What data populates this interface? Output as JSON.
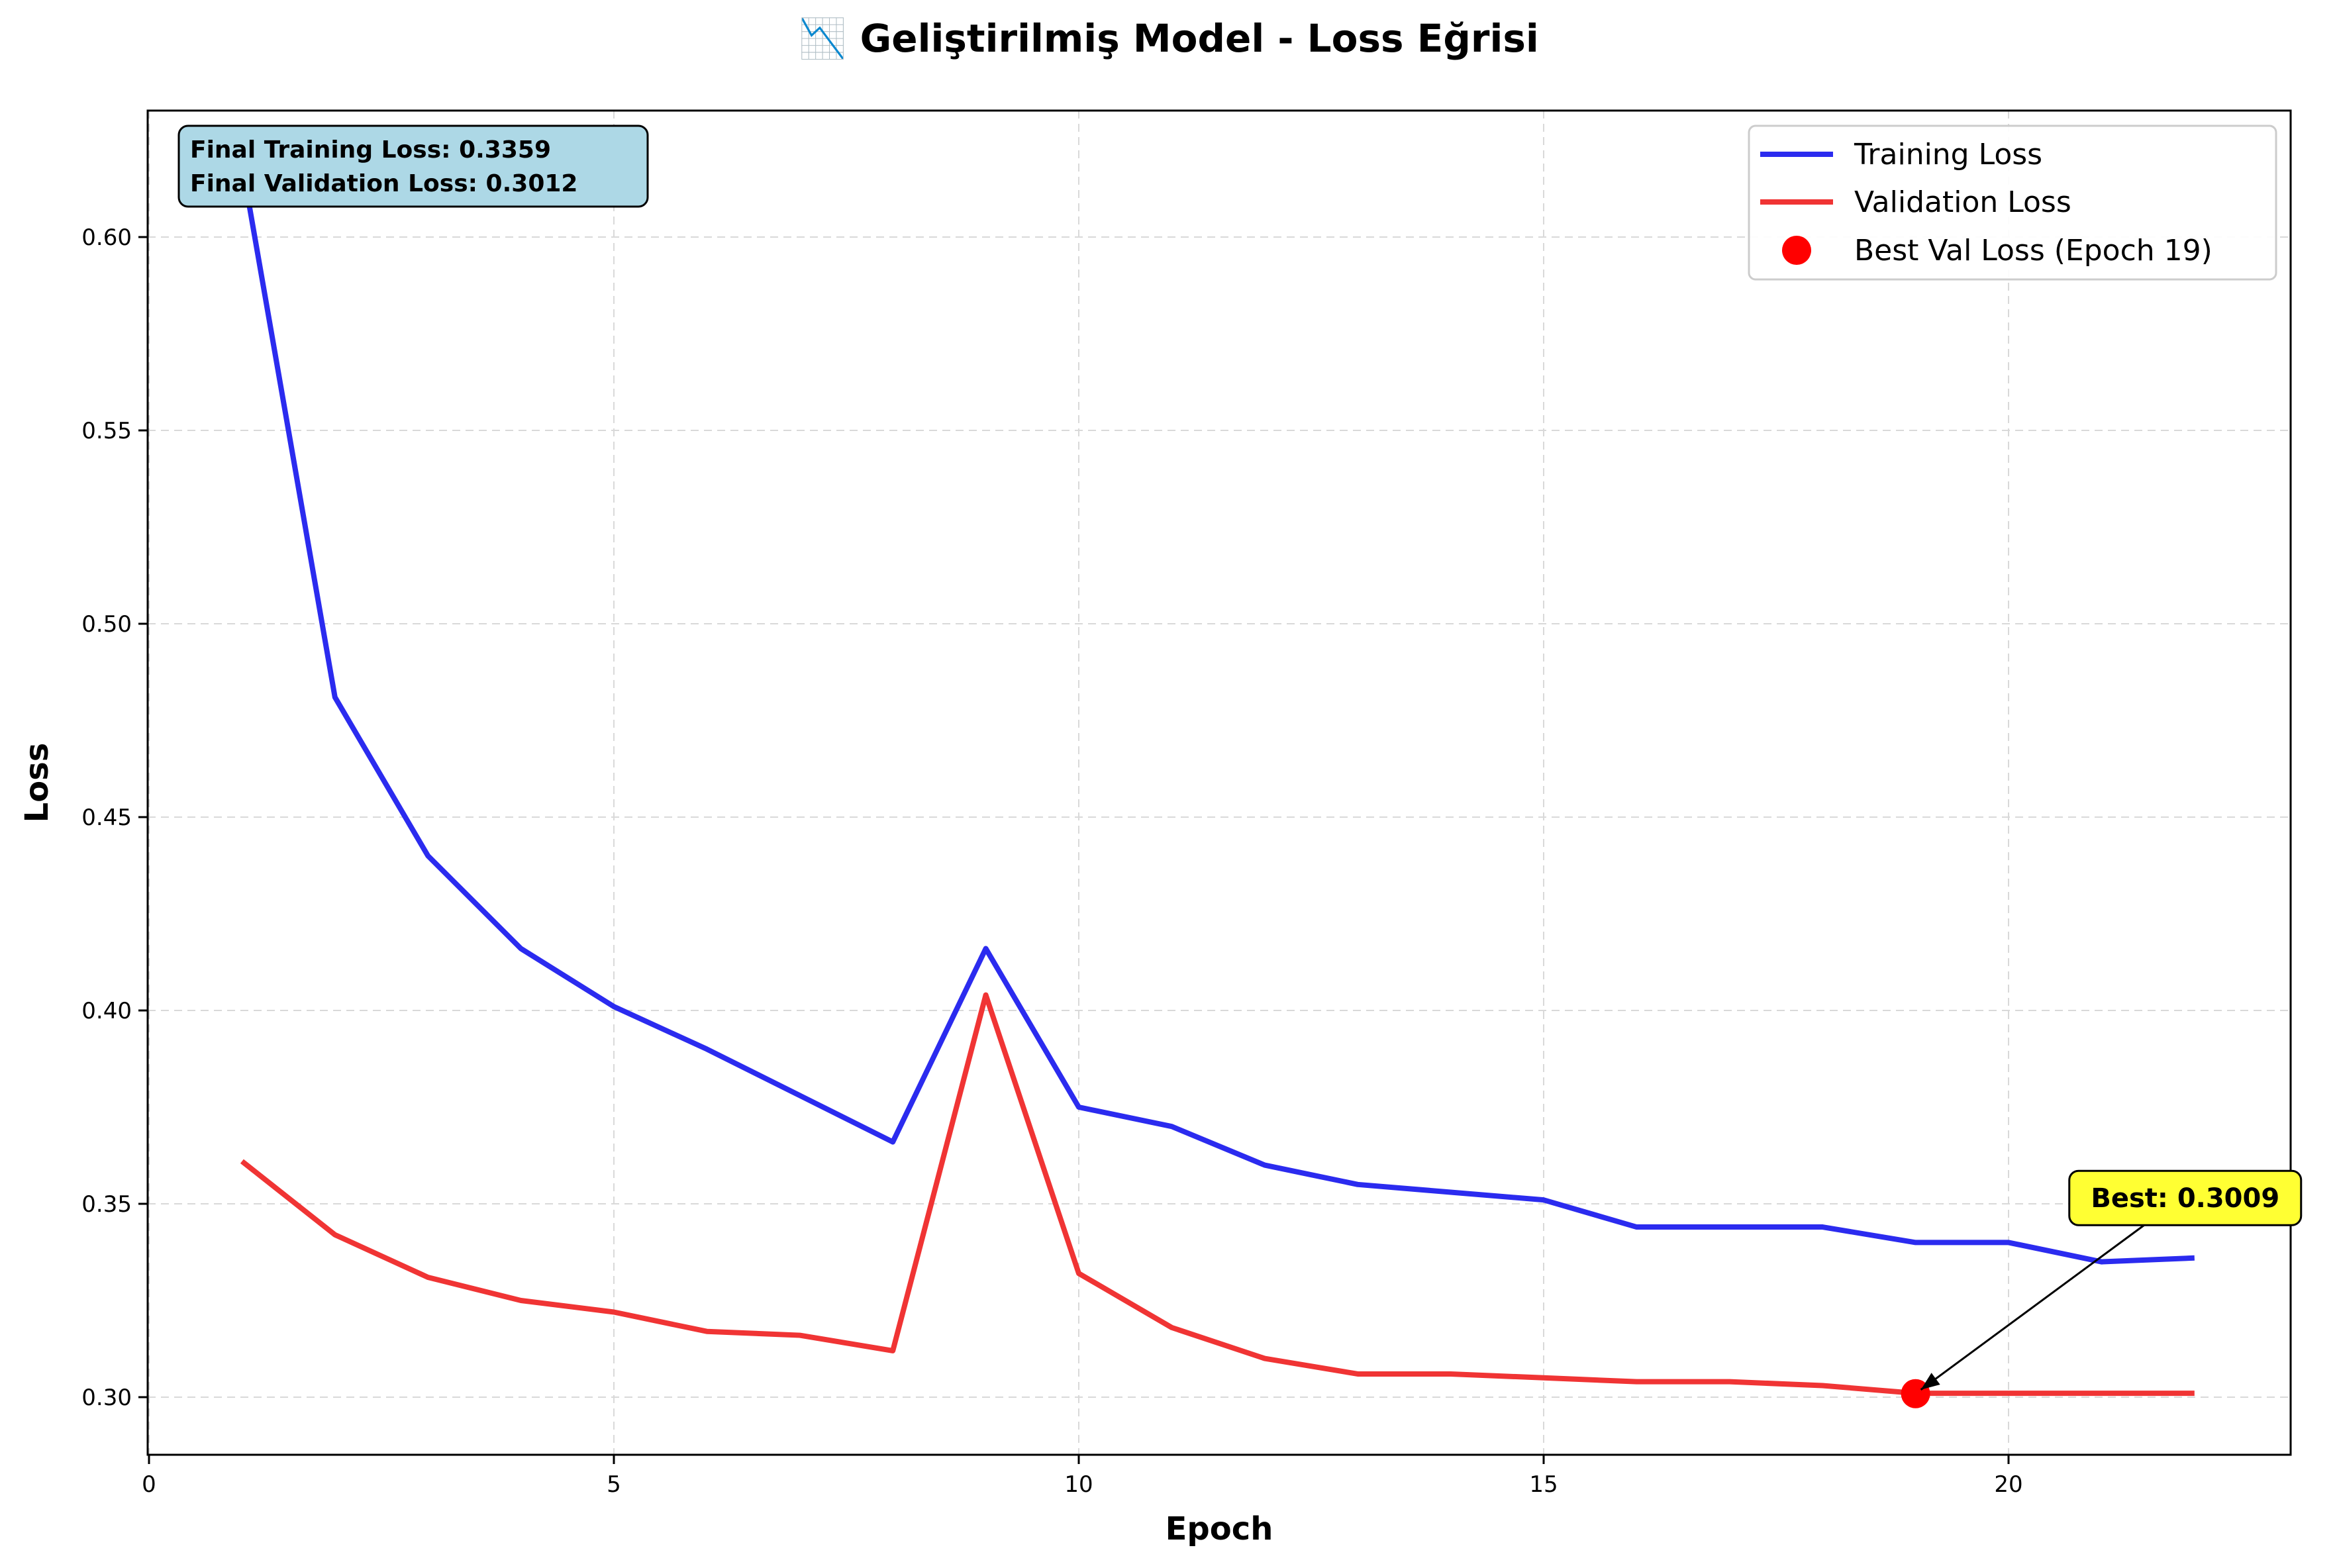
{
  "colors": {
    "training": "#2b2bef",
    "validation": "#f03434",
    "best_marker": "#ff0000",
    "info_box": "#add8e6",
    "best_box": "#ffff33",
    "grid": "#d9d9d9"
  },
  "chart_data": {
    "type": "line",
    "title": "📉 Geliştirilmiş Model - Loss Eğrisi",
    "xlabel": "Epoch",
    "ylabel": "Loss",
    "xlim": [
      0,
      23
    ],
    "ylim": [
      0.285,
      0.633
    ],
    "xticks": [
      0,
      5,
      10,
      15,
      20
    ],
    "yticks": [
      0.3,
      0.35,
      0.4,
      0.45,
      0.5,
      0.55,
      0.6
    ],
    "grid": true,
    "grid_style": "dashed",
    "legend_position": "top-right",
    "x": [
      1,
      2,
      3,
      4,
      5,
      6,
      7,
      8,
      9,
      10,
      11,
      12,
      13,
      14,
      15,
      16,
      17,
      18,
      19,
      20,
      21,
      22
    ],
    "series": [
      {
        "name": "Training Loss",
        "values": [
          0.619,
          0.481,
          0.44,
          0.416,
          0.401,
          0.39,
          0.378,
          0.366,
          0.416,
          0.375,
          0.37,
          0.36,
          0.355,
          0.353,
          0.351,
          0.344,
          0.344,
          0.344,
          0.34,
          0.34,
          0.335,
          0.336
        ]
      },
      {
        "name": "Validation Loss",
        "values": [
          0.361,
          0.342,
          0.331,
          0.325,
          0.322,
          0.317,
          0.316,
          0.312,
          0.404,
          0.332,
          0.318,
          0.31,
          0.306,
          0.306,
          0.305,
          0.304,
          0.304,
          0.303,
          0.301,
          0.301,
          0.301,
          0.301
        ]
      }
    ],
    "best_point": {
      "legend_label": "Best Val Loss (Epoch 19)",
      "epoch": 19,
      "value": 0.3009,
      "annotation": "Best: 0.3009",
      "annotation_x": 21.9,
      "annotation_y": 0.3515
    },
    "info_box": {
      "line1": "Final Training Loss: 0.3359",
      "line2": "Final Validation Loss: 0.3012"
    }
  }
}
